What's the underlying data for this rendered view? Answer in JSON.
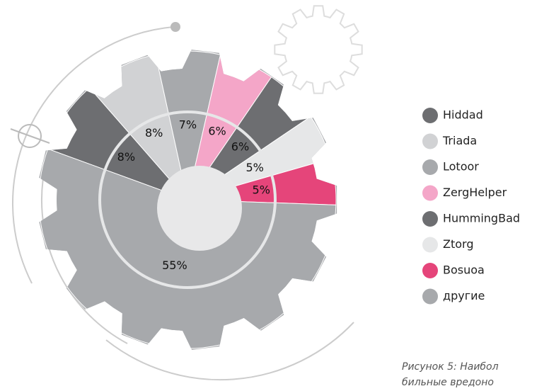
{
  "chart_data": {
    "type": "pie",
    "categories": [
      "Hiddad",
      "Triada",
      "Lotoor",
      "ZergHelper",
      "HummingBad",
      "Ztorg",
      "Bosuoa",
      "другие"
    ],
    "values": [
      8,
      8,
      7,
      6,
      6,
      5,
      5,
      55
    ],
    "value_labels": [
      "8%",
      "8%",
      "7%",
      "6%",
      "6%",
      "5%",
      "5%",
      "55%"
    ],
    "colors": [
      "#6d6e71",
      "#d1d2d4",
      "#a7a9ac",
      "#f4a6c8",
      "#6d6e71",
      "#e6e7e8",
      "#e5457a",
      "#a7a9ac"
    ],
    "legend": "right",
    "caption": [
      "Рисунок 5: Наибол",
      "бильные вредоно"
    ]
  }
}
